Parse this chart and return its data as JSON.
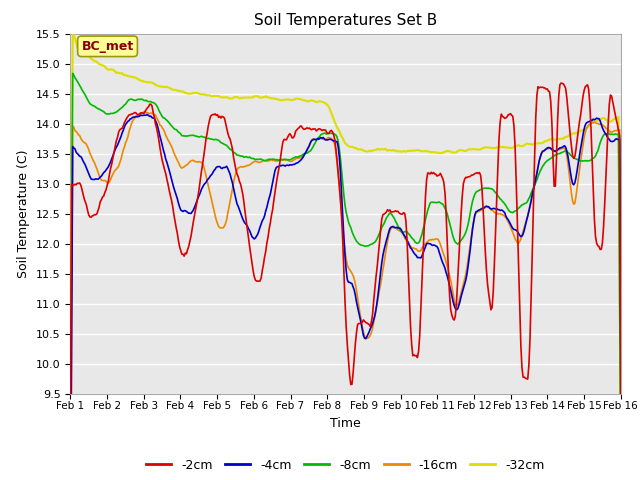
{
  "title": "Soil Temperatures Set B",
  "xlabel": "Time",
  "ylabel": "Soil Temperature (C)",
  "ylim": [
    9.5,
    15.5
  ],
  "yticks": [
    9.5,
    10.0,
    10.5,
    11.0,
    11.5,
    12.0,
    12.5,
    13.0,
    13.5,
    14.0,
    14.5,
    15.0,
    15.5
  ],
  "xtick_labels": [
    "Feb 1",
    "Feb 2",
    "Feb 3",
    "Feb 4",
    "Feb 5",
    "Feb 6",
    "Feb 7",
    "Feb 8",
    "Feb 9",
    "Feb 10",
    "Feb 11",
    "Feb 12",
    "Feb 13",
    "Feb 14",
    "Feb 15",
    "Feb 16"
  ],
  "annotation": "BC_met",
  "series": {
    "-2cm": {
      "color": "#dd0000",
      "lw": 1.2
    },
    "-4cm": {
      "color": "#0000cc",
      "lw": 1.2
    },
    "-8cm": {
      "color": "#00bb00",
      "lw": 1.2
    },
    "-16cm": {
      "color": "#ee8800",
      "lw": 1.2
    },
    "-32cm": {
      "color": "#dddd00",
      "lw": 1.5
    }
  },
  "bg_color": "#e8e8e8",
  "grid_color": "#ffffff"
}
